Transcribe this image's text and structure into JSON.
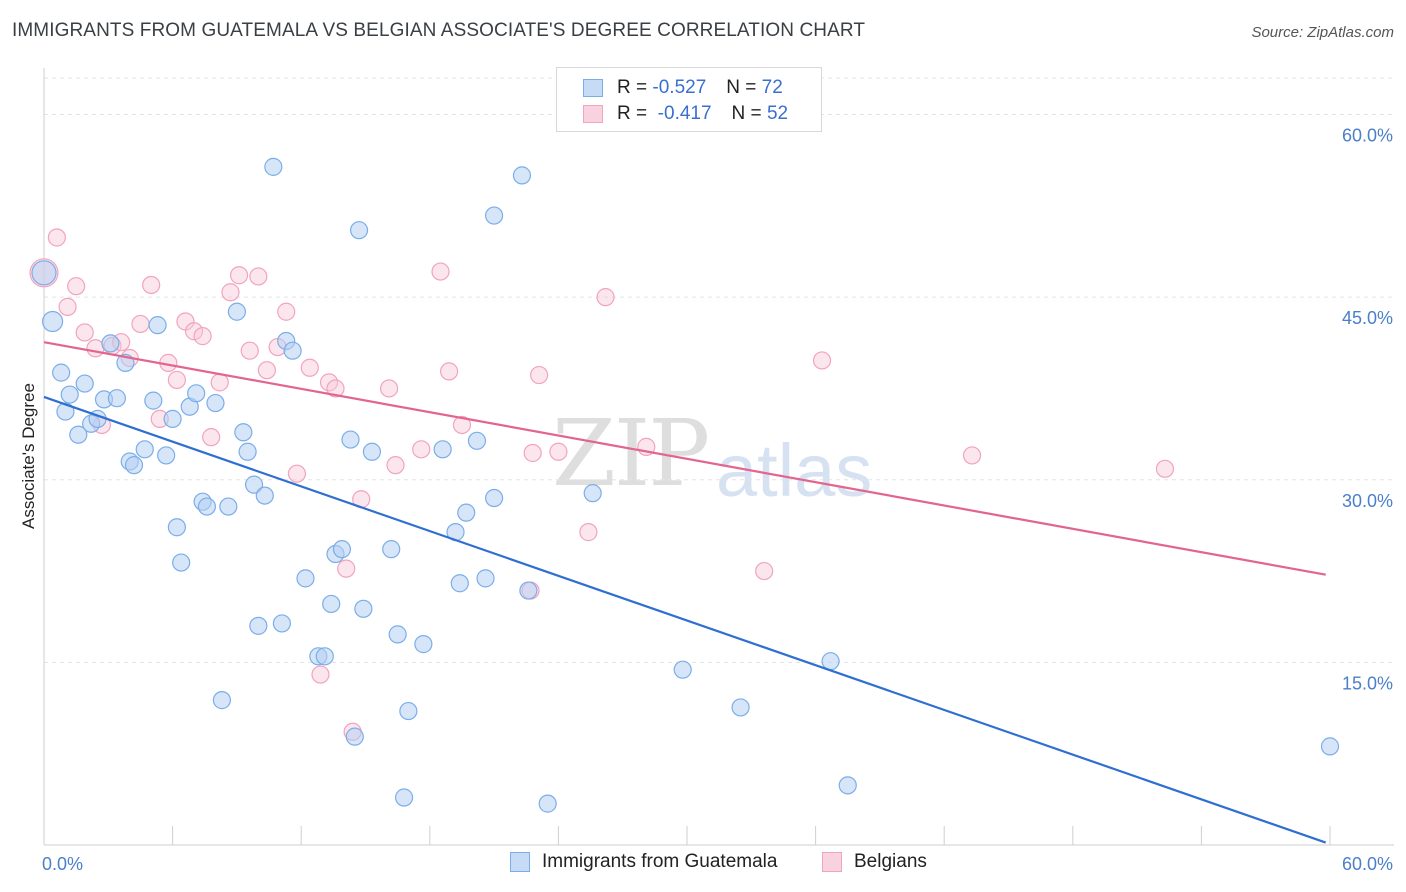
{
  "title": "IMMIGRANTS FROM GUATEMALA VS BELGIAN ASSOCIATE'S DEGREE CORRELATION CHART",
  "source": "Source: ZipAtlas.com",
  "watermark": {
    "zip": "ZIP",
    "atlas": "atlas"
  },
  "legend": {
    "rows": [
      {
        "r_label": "R =",
        "r_value": "-0.527",
        "n_label": "N =",
        "n_value": "72"
      },
      {
        "r_label": "R =",
        "r_value": "-0.417",
        "n_label": "N =",
        "n_value": "52"
      }
    ]
  },
  "bottom_legend": [
    "Immigrants from Guatemala",
    "Belgians"
  ],
  "colors": {
    "blue": "#7baee8",
    "blue_line": "#2f6fd1",
    "pink": "#f2a3bd",
    "pink_line": "#e3658e",
    "tick": "#4a7fc9"
  },
  "chart_data": {
    "type": "scatter",
    "title": "IMMIGRANTS FROM GUATEMALA VS BELGIAN ASSOCIATE'S DEGREE CORRELATION CHART",
    "xlabel": "",
    "ylabel": "Associate's Degree",
    "xlim": [
      0,
      60
    ],
    "ylim": [
      0,
      63
    ],
    "x_tick_labels": [
      "0.0%",
      "60.0%"
    ],
    "y_ticks": [
      15,
      30,
      45,
      60
    ],
    "y_tick_labels": [
      "15.0%",
      "30.0%",
      "45.0%",
      "60.0%"
    ],
    "grid": true,
    "legend_position": "top-center",
    "series": [
      {
        "name": "Immigrants from Guatemala",
        "color": "#7baee8",
        "trend": {
          "x": [
            0,
            59.8
          ],
          "y": [
            36.8,
            0.2
          ]
        },
        "points": [
          [
            0.0,
            47.0
          ],
          [
            0.4,
            43.0
          ],
          [
            0.8,
            38.8
          ],
          [
            1.0,
            35.6
          ],
          [
            1.2,
            37.0
          ],
          [
            1.6,
            33.7
          ],
          [
            1.9,
            37.9
          ],
          [
            2.2,
            34.6
          ],
          [
            2.5,
            35.0
          ],
          [
            2.8,
            36.6
          ],
          [
            3.1,
            41.2
          ],
          [
            3.4,
            36.7
          ],
          [
            3.8,
            39.6
          ],
          [
            4.0,
            31.5
          ],
          [
            4.2,
            31.2
          ],
          [
            4.7,
            32.5
          ],
          [
            5.1,
            36.5
          ],
          [
            5.3,
            42.7
          ],
          [
            5.7,
            32.0
          ],
          [
            6.0,
            35.0
          ],
          [
            6.2,
            26.1
          ],
          [
            6.4,
            23.2
          ],
          [
            6.8,
            36.0
          ],
          [
            7.1,
            37.1
          ],
          [
            7.4,
            28.2
          ],
          [
            7.6,
            27.8
          ],
          [
            8.0,
            36.3
          ],
          [
            8.3,
            11.9
          ],
          [
            8.6,
            27.8
          ],
          [
            9.0,
            43.8
          ],
          [
            9.3,
            33.9
          ],
          [
            9.5,
            32.3
          ],
          [
            9.8,
            29.6
          ],
          [
            10.0,
            18.0
          ],
          [
            10.3,
            28.7
          ],
          [
            10.7,
            55.7
          ],
          [
            11.1,
            18.2
          ],
          [
            11.3,
            41.4
          ],
          [
            11.6,
            40.6
          ],
          [
            12.2,
            21.9
          ],
          [
            12.8,
            15.5
          ],
          [
            13.1,
            15.5
          ],
          [
            13.4,
            19.8
          ],
          [
            13.6,
            23.9
          ],
          [
            13.9,
            24.3
          ],
          [
            14.3,
            33.3
          ],
          [
            14.5,
            8.9
          ],
          [
            14.7,
            50.5
          ],
          [
            14.9,
            19.4
          ],
          [
            15.3,
            32.3
          ],
          [
            16.2,
            24.3
          ],
          [
            16.5,
            17.3
          ],
          [
            16.8,
            3.9
          ],
          [
            17.0,
            11.0
          ],
          [
            17.7,
            16.5
          ],
          [
            18.6,
            32.5
          ],
          [
            19.2,
            25.7
          ],
          [
            19.4,
            21.5
          ],
          [
            19.7,
            27.3
          ],
          [
            20.2,
            33.2
          ],
          [
            20.6,
            21.9
          ],
          [
            21.0,
            28.5
          ],
          [
            21.0,
            51.7
          ],
          [
            22.3,
            55.0
          ],
          [
            22.6,
            20.9
          ],
          [
            23.5,
            3.4
          ],
          [
            25.6,
            28.9
          ],
          [
            29.8,
            14.4
          ],
          [
            32.5,
            11.3
          ],
          [
            36.7,
            15.1
          ],
          [
            37.5,
            4.9
          ],
          [
            60.0,
            8.1
          ]
        ]
      },
      {
        "name": "Belgians",
        "color": "#f2a3bd",
        "trend": {
          "x": [
            0,
            59.8
          ],
          "y": [
            41.3,
            22.2
          ]
        },
        "points": [
          [
            0.0,
            47.0
          ],
          [
            0.6,
            49.9
          ],
          [
            1.1,
            44.2
          ],
          [
            1.5,
            45.9
          ],
          [
            1.9,
            42.1
          ],
          [
            2.4,
            40.8
          ],
          [
            2.7,
            34.5
          ],
          [
            3.2,
            41.0
          ],
          [
            3.6,
            41.3
          ],
          [
            4.0,
            40.0
          ],
          [
            4.5,
            42.8
          ],
          [
            5.0,
            46.0
          ],
          [
            5.4,
            35.0
          ],
          [
            5.8,
            39.6
          ],
          [
            6.2,
            38.2
          ],
          [
            6.6,
            43.0
          ],
          [
            7.0,
            42.2
          ],
          [
            7.4,
            41.8
          ],
          [
            7.8,
            33.5
          ],
          [
            8.2,
            38.0
          ],
          [
            8.7,
            45.4
          ],
          [
            9.1,
            46.8
          ],
          [
            9.6,
            40.6
          ],
          [
            10.0,
            46.7
          ],
          [
            10.4,
            39.0
          ],
          [
            10.9,
            40.9
          ],
          [
            11.3,
            43.8
          ],
          [
            11.8,
            30.5
          ],
          [
            12.4,
            39.2
          ],
          [
            12.9,
            14.0
          ],
          [
            13.3,
            38.0
          ],
          [
            13.6,
            37.5
          ],
          [
            14.1,
            22.7
          ],
          [
            14.4,
            9.3
          ],
          [
            14.8,
            28.4
          ],
          [
            16.1,
            37.5
          ],
          [
            16.4,
            31.2
          ],
          [
            17.6,
            32.5
          ],
          [
            18.5,
            47.1
          ],
          [
            18.9,
            38.9
          ],
          [
            19.5,
            34.5
          ],
          [
            22.7,
            20.9
          ],
          [
            22.8,
            32.2
          ],
          [
            23.1,
            38.6
          ],
          [
            24.0,
            32.3
          ],
          [
            25.4,
            25.7
          ],
          [
            26.2,
            45.0
          ],
          [
            28.1,
            32.7
          ],
          [
            33.6,
            22.5
          ],
          [
            36.3,
            39.8
          ],
          [
            43.3,
            32.0
          ],
          [
            52.3,
            30.9
          ]
        ]
      }
    ]
  }
}
